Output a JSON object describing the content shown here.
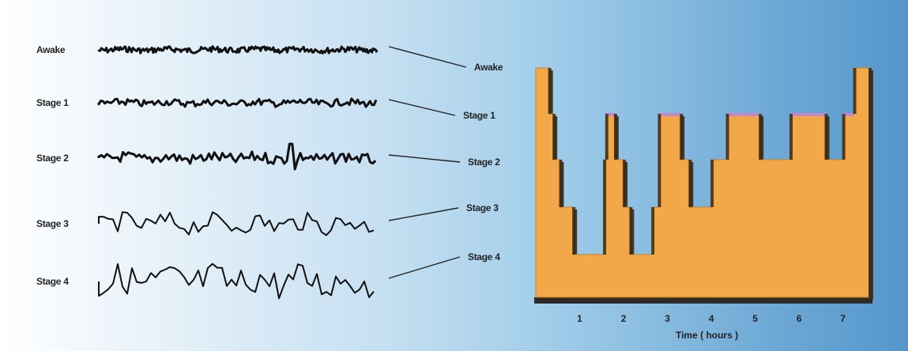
{
  "eeg_traces": [
    {
      "label": "Awake",
      "amplitude": 0.18,
      "frequency": "high"
    },
    {
      "label": "Stage 1",
      "amplitude": 0.22,
      "frequency": "medium-high"
    },
    {
      "label": "Stage 2",
      "amplitude": 0.35,
      "frequency": "medium",
      "spikes": true
    },
    {
      "label": "Stage 3",
      "amplitude": 0.6,
      "frequency": "low"
    },
    {
      "label": "Stage 4",
      "amplitude": 1.0,
      "frequency": "low"
    }
  ],
  "hypnogram_levels": [
    "Awake",
    "Stage 1",
    "Stage 2",
    "Stage 3",
    "Stage 4"
  ],
  "chart_data": {
    "type": "area",
    "xlabel": "Time ( hours )",
    "x_ticks": [
      "1",
      "2",
      "3",
      "4",
      "5",
      "6",
      "7"
    ],
    "xlim": [
      0,
      7.6
    ],
    "y_levels": [
      "Awake",
      "Stage 1",
      "Stage 2",
      "Stage 3",
      "Stage 4"
    ],
    "steps": [
      {
        "t": 0.0,
        "level": 0
      },
      {
        "t": 0.3,
        "level": 1
      },
      {
        "t": 0.4,
        "level": 2
      },
      {
        "t": 0.55,
        "level": 3
      },
      {
        "t": 0.85,
        "level": 4
      },
      {
        "t": 1.55,
        "level": 2
      },
      {
        "t": 1.6,
        "level": 1
      },
      {
        "t": 1.8,
        "level": 2
      },
      {
        "t": 2.0,
        "level": 3
      },
      {
        "t": 2.15,
        "level": 4
      },
      {
        "t": 2.65,
        "level": 3
      },
      {
        "t": 2.8,
        "level": 1
      },
      {
        "t": 3.3,
        "level": 2
      },
      {
        "t": 3.5,
        "level": 3
      },
      {
        "t": 4.0,
        "level": 2
      },
      {
        "t": 4.35,
        "level": 1
      },
      {
        "t": 5.1,
        "level": 2
      },
      {
        "t": 5.8,
        "level": 1
      },
      {
        "t": 6.6,
        "level": 2
      },
      {
        "t": 7.0,
        "level": 1
      },
      {
        "t": 7.25,
        "level": 0
      },
      {
        "t": 7.45,
        "level": 0
      }
    ],
    "fill_color": "#f2a748",
    "rem_highlight_color": "#c487c9"
  }
}
